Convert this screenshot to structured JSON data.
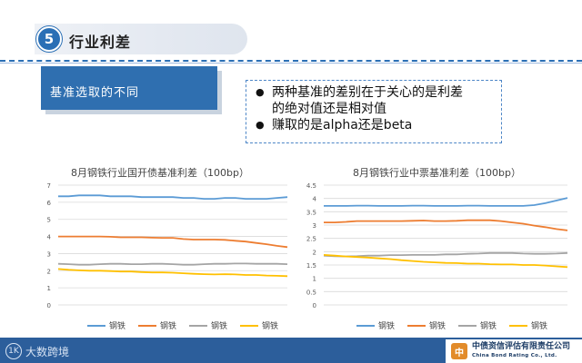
{
  "header": {
    "section_number": "5",
    "section_title": "行业利差"
  },
  "tab": {
    "label": "基准选取的不同"
  },
  "bullets": {
    "items": [
      {
        "lines": [
          "两种基准的差别在于关心的是利差",
          "的绝对值还是相对值"
        ]
      },
      {
        "lines": [
          "赚取的是alpha还是beta"
        ]
      }
    ]
  },
  "chart_data": [
    {
      "type": "line",
      "title": "8月钢铁行业国开债基准利差（100bp）",
      "xlabel": "",
      "ylabel": "",
      "ylim": [
        0,
        7
      ],
      "yticks": [
        "0",
        "1",
        "2",
        "3",
        "4",
        "5",
        "6",
        "7"
      ],
      "grid": true,
      "legend_position": "bottom",
      "x": [
        1,
        2,
        3,
        4,
        5,
        6,
        7,
        8,
        9,
        10,
        11,
        12,
        13,
        14,
        15,
        16,
        17,
        18,
        19,
        20,
        21,
        22,
        23
      ],
      "series": [
        {
          "name": "钢铁",
          "color": "#5b9bd5",
          "values": [
            6.35,
            6.35,
            6.4,
            6.4,
            6.4,
            6.35,
            6.35,
            6.35,
            6.3,
            6.3,
            6.3,
            6.3,
            6.25,
            6.25,
            6.2,
            6.2,
            6.25,
            6.25,
            6.2,
            6.2,
            6.2,
            6.25,
            6.3
          ]
        },
        {
          "name": "钢铁",
          "color": "#ed7d31",
          "values": [
            4.0,
            4.0,
            4.0,
            4.0,
            4.0,
            3.98,
            3.95,
            3.95,
            3.95,
            3.93,
            3.92,
            3.92,
            3.85,
            3.82,
            3.82,
            3.82,
            3.8,
            3.75,
            3.7,
            3.62,
            3.55,
            3.45,
            3.38
          ]
        },
        {
          "name": "钢铁",
          "color": "#a5a5a5",
          "values": [
            2.4,
            2.38,
            2.35,
            2.35,
            2.38,
            2.4,
            2.4,
            2.38,
            2.38,
            2.4,
            2.4,
            2.38,
            2.35,
            2.35,
            2.38,
            2.4,
            2.4,
            2.42,
            2.42,
            2.4,
            2.4,
            2.4,
            2.38
          ]
        },
        {
          "name": "钢铁",
          "color": "#ffc000",
          "values": [
            2.1,
            2.05,
            2.02,
            2.0,
            2.0,
            1.98,
            1.95,
            1.95,
            1.92,
            1.9,
            1.9,
            1.88,
            1.85,
            1.82,
            1.8,
            1.78,
            1.8,
            1.78,
            1.75,
            1.75,
            1.72,
            1.7,
            1.68
          ]
        }
      ]
    },
    {
      "type": "line",
      "title": "8月钢铁行业中票基准利差（100bp）",
      "xlabel": "",
      "ylabel": "",
      "ylim": [
        0,
        4.5
      ],
      "yticks": [
        "0",
        "0.5",
        "1",
        "1.5",
        "2",
        "2.5",
        "3",
        "3.5",
        "4",
        "4.5"
      ],
      "grid": true,
      "legend_position": "bottom",
      "x": [
        1,
        2,
        3,
        4,
        5,
        6,
        7,
        8,
        9,
        10,
        11,
        12,
        13,
        14,
        15,
        16,
        17,
        18,
        19,
        20,
        21,
        22,
        23
      ],
      "series": [
        {
          "name": "钢铁",
          "color": "#5b9bd5",
          "values": [
            3.72,
            3.72,
            3.72,
            3.73,
            3.73,
            3.72,
            3.72,
            3.72,
            3.73,
            3.73,
            3.72,
            3.72,
            3.72,
            3.73,
            3.73,
            3.72,
            3.72,
            3.72,
            3.72,
            3.75,
            3.82,
            3.92,
            4.02
          ]
        },
        {
          "name": "钢铁",
          "color": "#ed7d31",
          "values": [
            3.1,
            3.1,
            3.12,
            3.15,
            3.15,
            3.15,
            3.15,
            3.15,
            3.16,
            3.17,
            3.15,
            3.15,
            3.16,
            3.18,
            3.18,
            3.18,
            3.15,
            3.1,
            3.05,
            2.98,
            2.92,
            2.85,
            2.8
          ]
        },
        {
          "name": "钢铁",
          "color": "#a5a5a5",
          "values": [
            1.85,
            1.83,
            1.82,
            1.83,
            1.85,
            1.85,
            1.87,
            1.87,
            1.88,
            1.88,
            1.88,
            1.9,
            1.9,
            1.92,
            1.93,
            1.95,
            1.95,
            1.95,
            1.93,
            1.92,
            1.92,
            1.93,
            1.95
          ]
        },
        {
          "name": "钢铁",
          "color": "#ffc000",
          "values": [
            1.88,
            1.85,
            1.82,
            1.8,
            1.78,
            1.75,
            1.72,
            1.68,
            1.65,
            1.62,
            1.6,
            1.58,
            1.57,
            1.55,
            1.55,
            1.53,
            1.52,
            1.52,
            1.5,
            1.5,
            1.48,
            1.45,
            1.42
          ]
        }
      ]
    }
  ],
  "footer": {
    "left_text": "大数跨境",
    "left_logo": "1K",
    "right_logo": "中",
    "company_cn": "中债资信评估有限责任公司",
    "company_en": "China Bond Rating Co., Ltd."
  }
}
